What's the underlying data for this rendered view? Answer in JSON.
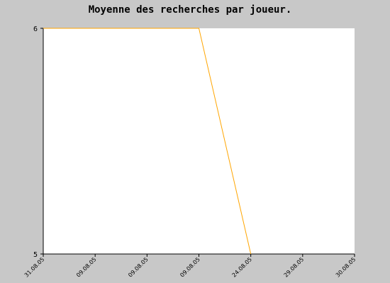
{
  "chart_data": {
    "type": "line",
    "title": "Moyenne des recherches par joueur.",
    "x": [
      "31.08.05",
      "09.08.05",
      "09.08.05",
      "09.08.05",
      "24.08.05",
      "29.08.05",
      "30.08.05"
    ],
    "series": [
      {
        "values": [
          6,
          6,
          6,
          6,
          5,
          null,
          null
        ],
        "color": "#ffa500"
      }
    ],
    "yticks": [
      5,
      6
    ],
    "ylim": [
      5,
      6
    ],
    "grid": false,
    "legend": "none",
    "colors": {
      "background": "#c8c8c8",
      "plot_area": "#ffffff",
      "line": "#ffa500",
      "axis": "#000000"
    }
  }
}
